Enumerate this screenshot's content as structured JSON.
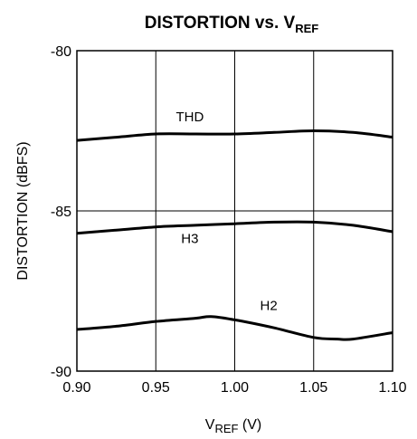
{
  "chart_data": {
    "type": "line",
    "title": {
      "main": "DISTORTION vs. V",
      "sub": "REF"
    },
    "xlabel": {
      "main": "V",
      "sub": "REF",
      "suffix": " (V)"
    },
    "ylabel": "DISTORTION (dBFS)",
    "xlim": [
      0.9,
      1.1
    ],
    "ylim": [
      -90,
      -80
    ],
    "xticks": [
      "0.90",
      "0.95",
      "1.00",
      "1.05",
      "1.10"
    ],
    "yticks": [
      "-80",
      "-85",
      "-90"
    ],
    "grid": true,
    "series": [
      {
        "name": "THD",
        "x": [
          0.9,
          0.925,
          0.95,
          0.975,
          1.0,
          1.025,
          1.05,
          1.075,
          1.1
        ],
        "values": [
          -82.8,
          -82.7,
          -82.6,
          -82.6,
          -82.6,
          -82.55,
          -82.5,
          -82.55,
          -82.7
        ]
      },
      {
        "name": "H3",
        "x": [
          0.9,
          0.925,
          0.95,
          0.975,
          1.0,
          1.025,
          1.05,
          1.075,
          1.1
        ],
        "values": [
          -85.7,
          -85.6,
          -85.5,
          -85.45,
          -85.4,
          -85.35,
          -85.35,
          -85.45,
          -85.65
        ]
      },
      {
        "name": "H2",
        "x": [
          0.9,
          0.925,
          0.95,
          0.975,
          0.985,
          1.0,
          1.025,
          1.05,
          1.065,
          1.075,
          1.1
        ],
        "values": [
          -88.7,
          -88.6,
          -88.45,
          -88.35,
          -88.3,
          -88.4,
          -88.65,
          -88.95,
          -89.0,
          -89.0,
          -88.8
        ]
      }
    ]
  }
}
